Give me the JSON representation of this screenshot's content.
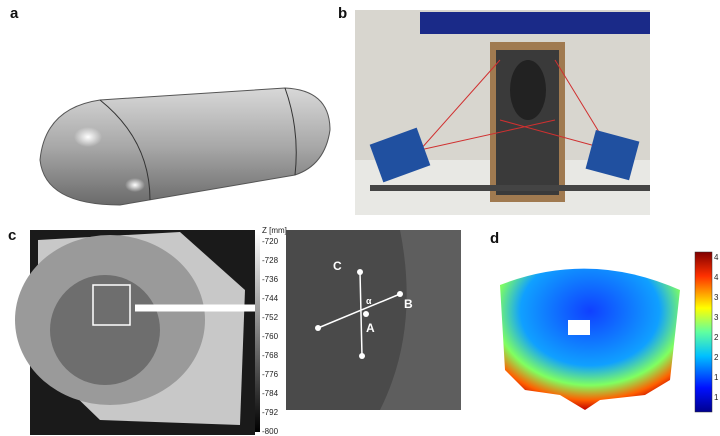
{
  "panels": {
    "a": "a",
    "b": "b",
    "c": "c",
    "d": "d"
  },
  "panel_c": {
    "scale_header": "Z [mm]",
    "scale_ticks": [
      "-720",
      "-728",
      "-736",
      "-744",
      "-752",
      "-760",
      "-768",
      "-776",
      "-784",
      "-792",
      "-800"
    ],
    "point_labels": {
      "c": "C",
      "b": "B",
      "a": "A",
      "alpha": "α"
    }
  },
  "panel_d": {
    "colorbar_ticks": [
      "4",
      "4",
      "3",
      "3",
      "2",
      "2",
      "1",
      "1"
    ]
  }
}
